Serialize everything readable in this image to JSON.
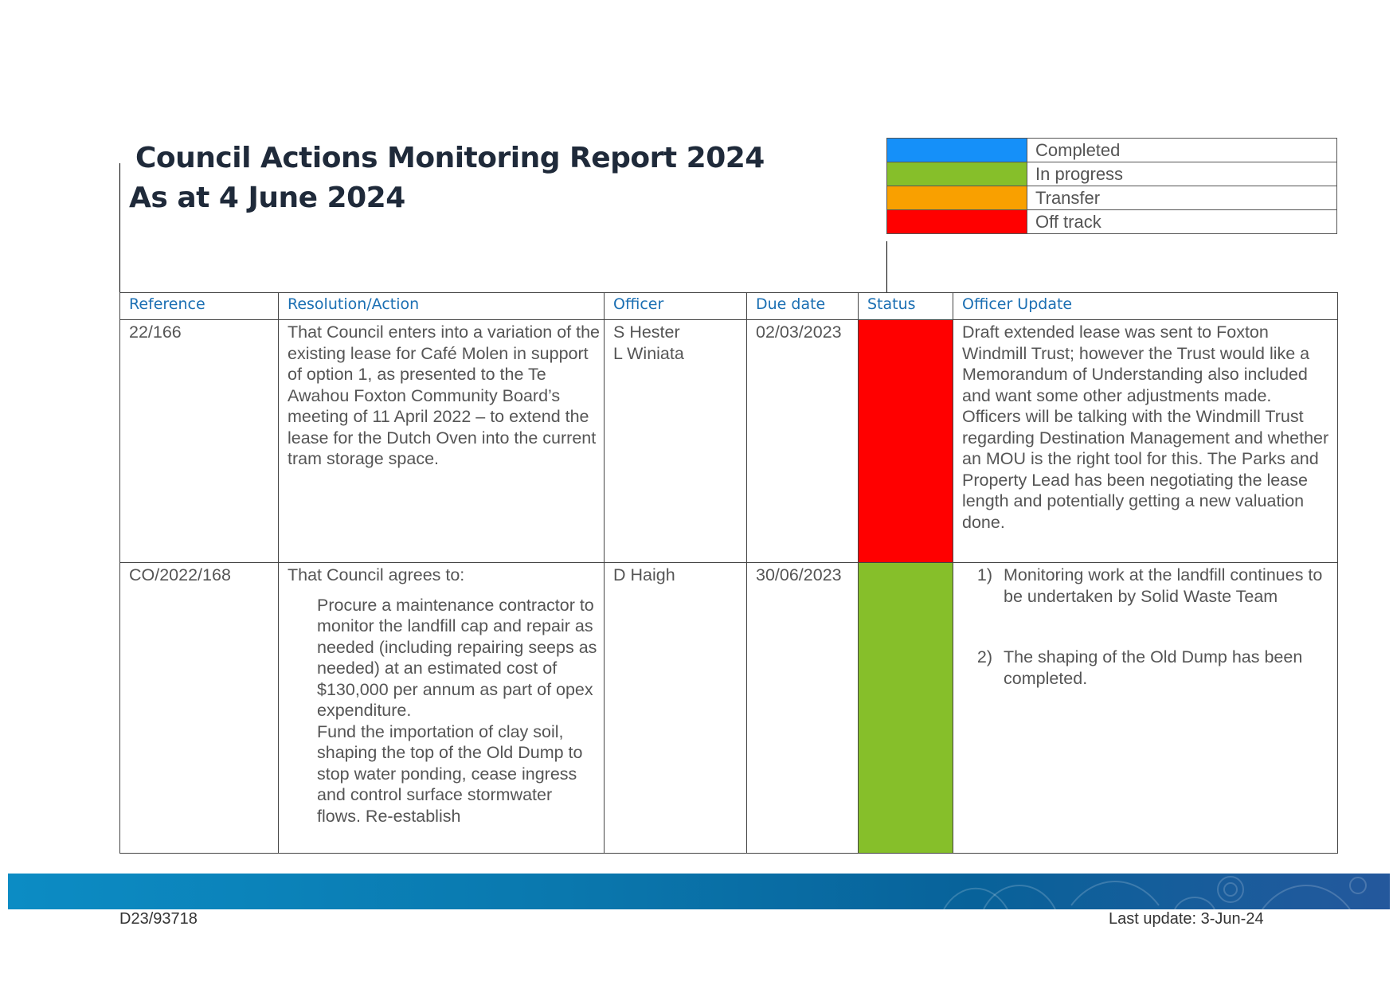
{
  "header": {
    "title_line1": "Council Actions Monitoring Report 2024",
    "title_line2": "As at 4 June 2024"
  },
  "legend": [
    {
      "label": "Completed",
      "color": "#1590f9"
    },
    {
      "label": "In progress",
      "color": "#86bf2a"
    },
    {
      "label": "Transfer",
      "color": "#f9a000"
    },
    {
      "label": "Off track",
      "color": "#ff0000"
    }
  ],
  "table": {
    "headers": {
      "reference": "Reference",
      "resolution": "Resolution/Action",
      "officer": "Officer",
      "due_date": "Due date",
      "status": "Status",
      "update": "Officer Update"
    },
    "rows": [
      {
        "reference": "22/166",
        "resolution": "That Council enters into a variation of the existing lease for Café Molen in support of option 1, as presented to the Te Awahou Foxton Community Board’s meeting of 11 April 2022 – to extend the lease for the Dutch Oven into the current tram storage space.",
        "officer_1": "S Hester",
        "officer_2": "L Winiata",
        "due_date": "02/03/2023",
        "status_color": "#ff0000",
        "update": "Draft extended lease was sent to Foxton Windmill Trust; however the Trust would like a Memorandum of Understanding also included and want some other adjustments made.\nOfficers will be talking with the Windmill Trust regarding Destination Management and whether an MOU is the right tool for this. The Parks and Property Lead has been negotiating the lease length and potentially getting a new valuation done."
      },
      {
        "reference": "CO/2022/168",
        "resolution_intro": "That Council agrees to:",
        "bullet_1": "Procure a maintenance contractor to monitor the landfill cap and repair as needed (including repairing seeps as needed) at an estimated cost of $130,000 per annum as part of opex expenditure.",
        "bullet_2": "Fund the importation of clay soil, shaping the top of the Old Dump to stop water ponding, cease ingress and control surface stormwater flows. Re-establish",
        "bullet_marker": "",
        "officer_1": "D Haigh",
        "due_date": "30/06/2023",
        "status_color": "#86bf2a",
        "update_1_num": "1)",
        "update_1": "Monitoring work at the landfill continues to be undertaken by Solid Waste Team",
        "update_2_num": "2)",
        "update_2": "The shaping of the Old Dump has been completed."
      }
    ]
  },
  "footer": {
    "doc_ref": "D23/93718",
    "last_update": "Last update: 3-Jun-24"
  }
}
